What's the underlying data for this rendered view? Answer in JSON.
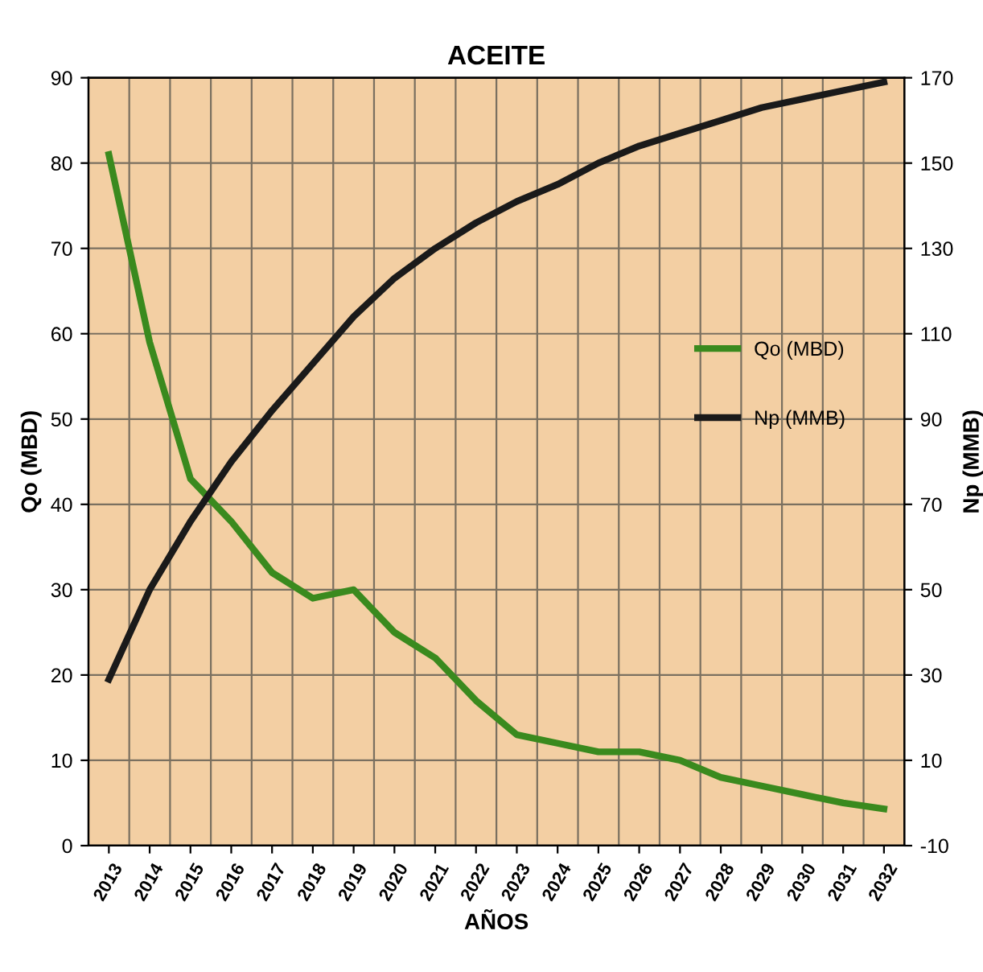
{
  "chart_data": {
    "type": "line",
    "title": "ACEITE",
    "xlabel": "AÑOS",
    "ylabel": "Qo (MBD)",
    "y2label": "Np (MMB)",
    "categories": [
      "2013",
      "2014",
      "2015",
      "2016",
      "2017",
      "2018",
      "2019",
      "2020",
      "2021",
      "2022",
      "2023",
      "2024",
      "2025",
      "2026",
      "2027",
      "2028",
      "2029",
      "2030",
      "2031",
      "2032"
    ],
    "series": [
      {
        "name": "Qo (MBD)",
        "color": "#3a8a1e",
        "values": [
          81,
          59,
          43,
          38,
          32,
          29,
          30,
          25,
          22,
          17,
          13,
          12,
          11,
          11,
          10,
          8,
          7,
          6,
          5,
          4.3
        ]
      },
      {
        "name": "Np (MMB)",
        "color": "#1a1a1a",
        "axis": "y2",
        "values": [
          29,
          50,
          66,
          80,
          92,
          103,
          114,
          123,
          130,
          136,
          141,
          145,
          150,
          154,
          157,
          160,
          163,
          165,
          167,
          169
        ]
      }
    ],
    "ylim": [
      0,
      90
    ],
    "yticks": [
      0,
      10,
      20,
      30,
      40,
      50,
      60,
      70,
      80,
      90
    ],
    "y2lim": [
      -10,
      170
    ],
    "y2ticks": [
      -10,
      10,
      30,
      50,
      70,
      90,
      110,
      130,
      150,
      170
    ],
    "grid": true,
    "legend": "right",
    "marker": "none",
    "line_style": "solid"
  }
}
